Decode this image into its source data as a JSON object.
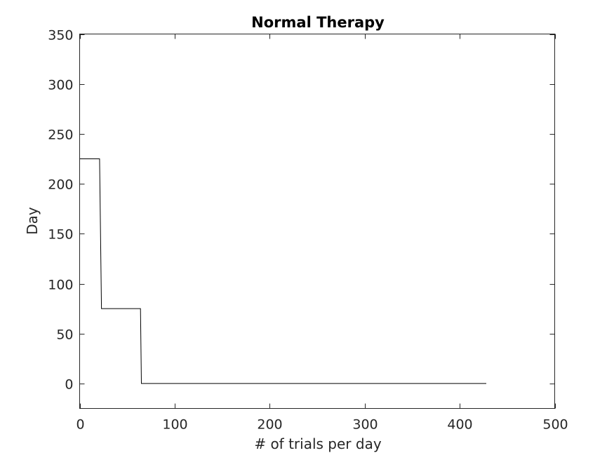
{
  "chart_data": {
    "type": "line",
    "title": "Normal Therapy",
    "xlabel": "# of trials per day",
    "ylabel": "Day",
    "xlim": [
      0,
      500
    ],
    "ylim": [
      -25,
      350
    ],
    "xticks": [
      0,
      100,
      200,
      300,
      400,
      500
    ],
    "yticks": [
      0,
      50,
      100,
      150,
      200,
      250,
      300,
      350
    ],
    "grid": false,
    "series": [
      {
        "x": [
          0,
          21,
          23,
          64,
          65,
          428
        ],
        "y": [
          225,
          225,
          75,
          75,
          0,
          0
        ]
      }
    ],
    "colors": {
      "line": "#000000",
      "axis": "#262626"
    }
  }
}
